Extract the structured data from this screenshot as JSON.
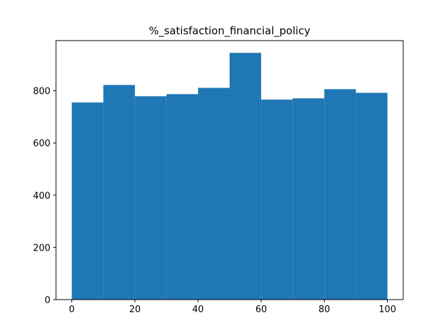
{
  "chart_data": {
    "type": "bar",
    "title": "%_satisfaction_financial_policy",
    "xlabel": "",
    "ylabel": "",
    "bin_edges": [
      0,
      10,
      20,
      30,
      40,
      50,
      60,
      70,
      80,
      90,
      100
    ],
    "values": [
      755,
      822,
      779,
      787,
      811,
      945,
      766,
      771,
      806,
      792
    ],
    "xlim": [
      -5,
      105
    ],
    "ylim": [
      0,
      992
    ],
    "xticks": [
      0,
      20,
      40,
      60,
      80,
      100
    ],
    "yticks": [
      0,
      200,
      400,
      600,
      800
    ],
    "bar_color": "#1f77b4",
    "grid": false,
    "legend": "none"
  }
}
